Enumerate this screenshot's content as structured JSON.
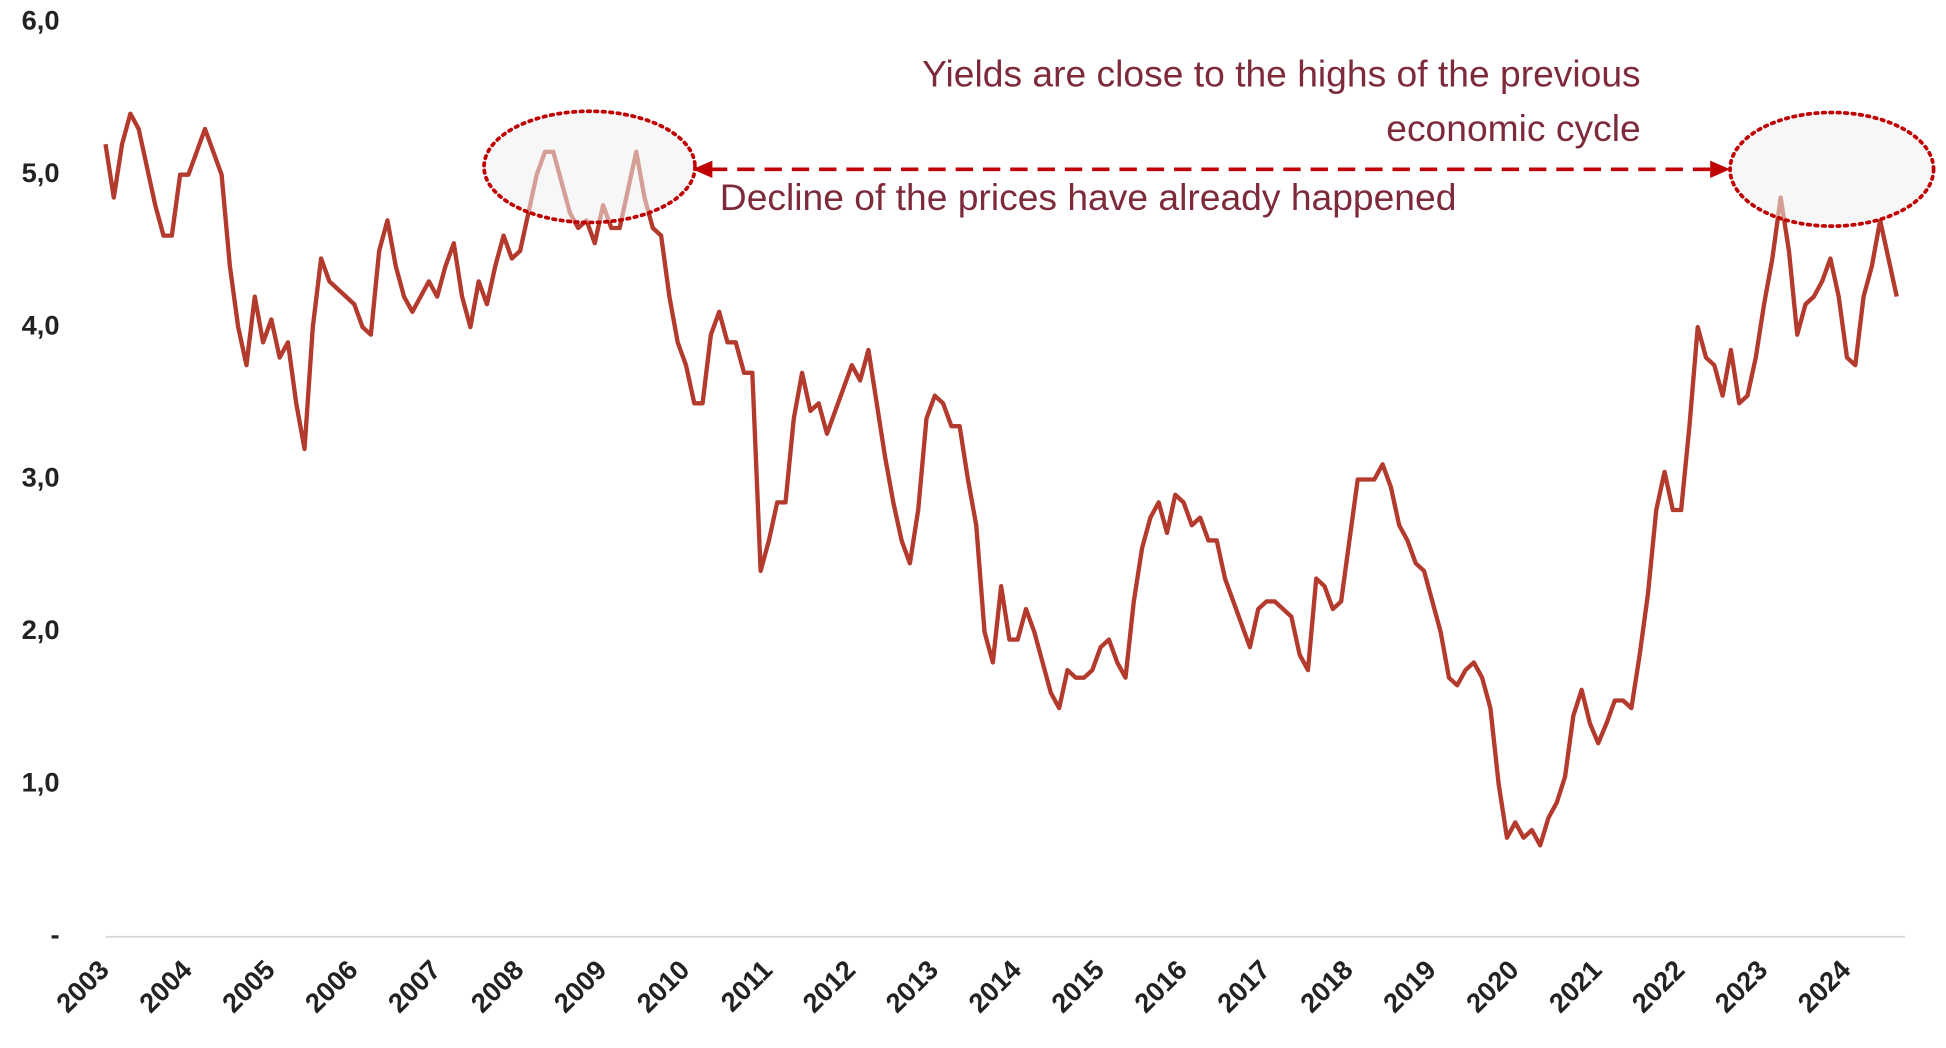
{
  "chart_data": {
    "type": "line",
    "color": "#b33a2c",
    "annotations": [
      "Yields are close to the highs of the previous",
      "economic cycle",
      "Decline of the prices have already happened"
    ],
    "xlim": [
      2003,
      2024.7
    ],
    "xticks": [
      2003,
      2004,
      2005,
      2006,
      2007,
      2008,
      2009,
      2010,
      2011,
      2012,
      2013,
      2014,
      2015,
      2016,
      2017,
      2018,
      2019,
      2020,
      2021,
      2022,
      2023,
      2024
    ],
    "ylim": [
      0,
      6
    ],
    "yticks": [
      {
        "value": 0,
        "label": "-"
      },
      {
        "value": 1,
        "label": "1,0"
      },
      {
        "value": 2,
        "label": "2,0"
      },
      {
        "value": 3,
        "label": "3,0"
      },
      {
        "value": 4,
        "label": "4,0"
      },
      {
        "value": 5,
        "label": "5,0"
      },
      {
        "value": 6,
        "label": "6,0"
      }
    ],
    "x": [
      2003.0,
      2003.1,
      2003.2,
      2003.3,
      2003.4,
      2003.5,
      2003.6,
      2003.7,
      2003.8,
      2003.9,
      2004.0,
      2004.1,
      2004.2,
      2004.3,
      2004.4,
      2004.5,
      2004.6,
      2004.7,
      2004.8,
      2004.9,
      2005.0,
      2005.1,
      2005.2,
      2005.3,
      2005.4,
      2005.5,
      2005.6,
      2005.7,
      2005.8,
      2005.9,
      2006.0,
      2006.1,
      2006.2,
      2006.3,
      2006.4,
      2006.5,
      2006.6,
      2006.7,
      2006.8,
      2006.9,
      2007.0,
      2007.1,
      2007.2,
      2007.3,
      2007.4,
      2007.5,
      2007.6,
      2007.7,
      2007.8,
      2007.9,
      2008.0,
      2008.1,
      2008.2,
      2008.3,
      2008.4,
      2008.5,
      2008.6,
      2008.7,
      2008.8,
      2008.9,
      2009.0,
      2009.1,
      2009.2,
      2009.3,
      2009.4,
      2009.5,
      2009.6,
      2009.7,
      2009.8,
      2009.9,
      2010.0,
      2010.1,
      2010.2,
      2010.3,
      2010.4,
      2010.5,
      2010.6,
      2010.7,
      2010.8,
      2010.9,
      2011.0,
      2011.1,
      2011.2,
      2011.3,
      2011.4,
      2011.5,
      2011.6,
      2011.7,
      2011.8,
      2011.9,
      2012.0,
      2012.1,
      2012.2,
      2012.3,
      2012.4,
      2012.5,
      2012.6,
      2012.7,
      2012.8,
      2012.9,
      2013.0,
      2013.1,
      2013.2,
      2013.3,
      2013.4,
      2013.5,
      2013.6,
      2013.7,
      2013.8,
      2013.9,
      2014.0,
      2014.1,
      2014.2,
      2014.3,
      2014.4,
      2014.5,
      2014.6,
      2014.7,
      2014.8,
      2014.9,
      2015.0,
      2015.1,
      2015.2,
      2015.3,
      2015.4,
      2015.5,
      2015.6,
      2015.7,
      2015.8,
      2015.9,
      2016.0,
      2016.1,
      2016.2,
      2016.3,
      2016.4,
      2016.5,
      2016.6,
      2016.7,
      2016.8,
      2016.9,
      2017.0,
      2017.1,
      2017.2,
      2017.3,
      2017.4,
      2017.5,
      2017.6,
      2017.7,
      2017.8,
      2017.9,
      2018.0,
      2018.1,
      2018.2,
      2018.3,
      2018.4,
      2018.5,
      2018.6,
      2018.7,
      2018.8,
      2018.9,
      2019.0,
      2019.1,
      2019.2,
      2019.3,
      2019.4,
      2019.5,
      2019.6,
      2019.7,
      2019.8,
      2019.9,
      2020.0,
      2020.1,
      2020.2,
      2020.3,
      2020.4,
      2020.5,
      2020.6,
      2020.7,
      2020.8,
      2020.9,
      2021.0,
      2021.1,
      2021.2,
      2021.3,
      2021.4,
      2021.5,
      2021.6,
      2021.7,
      2021.8,
      2021.9,
      2022.0,
      2022.1,
      2022.2,
      2022.3,
      2022.4,
      2022.5,
      2022.6,
      2022.7,
      2022.8,
      2022.9,
      2023.0,
      2023.1,
      2023.2,
      2023.3,
      2023.4,
      2023.5,
      2023.6,
      2023.7,
      2023.8,
      2023.9,
      2024.0,
      2024.1,
      2024.2,
      2024.3,
      2024.4,
      2024.5,
      2024.6
    ],
    "values": [
      5.2,
      4.85,
      5.2,
      5.4,
      5.3,
      5.05,
      4.8,
      4.6,
      4.6,
      5.0,
      5.0,
      5.15,
      5.3,
      5.15,
      5.0,
      4.4,
      4.0,
      3.75,
      4.2,
      3.9,
      4.05,
      3.8,
      3.9,
      3.5,
      3.2,
      4.0,
      4.45,
      4.3,
      4.25,
      4.2,
      4.15,
      4.0,
      3.95,
      4.5,
      4.7,
      4.4,
      4.2,
      4.1,
      4.2,
      4.3,
      4.2,
      4.4,
      4.55,
      4.2,
      4.0,
      4.3,
      4.15,
      4.4,
      4.6,
      4.45,
      4.5,
      4.75,
      5.0,
      5.15,
      5.15,
      4.95,
      4.75,
      4.65,
      4.7,
      4.55,
      4.8,
      4.65,
      4.65,
      4.9,
      5.15,
      4.85,
      4.65,
      4.6,
      4.2,
      3.9,
      3.75,
      3.5,
      3.5,
      3.95,
      4.1,
      3.9,
      3.9,
      3.7,
      3.7,
      2.4,
      2.6,
      2.85,
      2.85,
      3.4,
      3.7,
      3.45,
      3.5,
      3.3,
      3.45,
      3.6,
      3.75,
      3.65,
      3.85,
      3.5,
      3.15,
      2.85,
      2.6,
      2.45,
      2.8,
      3.4,
      3.55,
      3.5,
      3.35,
      3.35,
      3.0,
      2.7,
      2.0,
      1.8,
      2.3,
      1.95,
      1.95,
      2.15,
      2.0,
      1.8,
      1.6,
      1.5,
      1.75,
      1.7,
      1.7,
      1.75,
      1.9,
      1.95,
      1.8,
      1.7,
      2.2,
      2.55,
      2.75,
      2.85,
      2.65,
      2.9,
      2.85,
      2.7,
      2.75,
      2.6,
      2.6,
      2.35,
      2.2,
      2.05,
      1.9,
      2.15,
      2.2,
      2.2,
      2.15,
      2.1,
      1.85,
      1.75,
      2.35,
      2.3,
      2.15,
      2.2,
      2.6,
      3.0,
      3.0,
      3.0,
      3.1,
      2.95,
      2.7,
      2.6,
      2.45,
      2.4,
      2.2,
      2.0,
      1.7,
      1.65,
      1.75,
      1.8,
      1.7,
      1.5,
      1.0,
      0.65,
      0.75,
      0.65,
      0.7,
      0.6,
      0.78,
      0.88,
      1.05,
      1.45,
      1.62,
      1.4,
      1.27,
      1.4,
      1.55,
      1.55,
      1.5,
      1.85,
      2.25,
      2.8,
      3.05,
      2.8,
      2.8,
      3.35,
      4.0,
      3.8,
      3.75,
      3.55,
      3.85,
      3.5,
      3.55,
      3.8,
      4.15,
      4.45,
      4.85,
      4.5,
      3.95,
      4.15,
      4.2,
      4.3,
      4.45,
      4.2,
      3.8,
      3.75,
      4.2,
      4.4,
      4.7,
      4.45,
      4.2
    ]
  }
}
